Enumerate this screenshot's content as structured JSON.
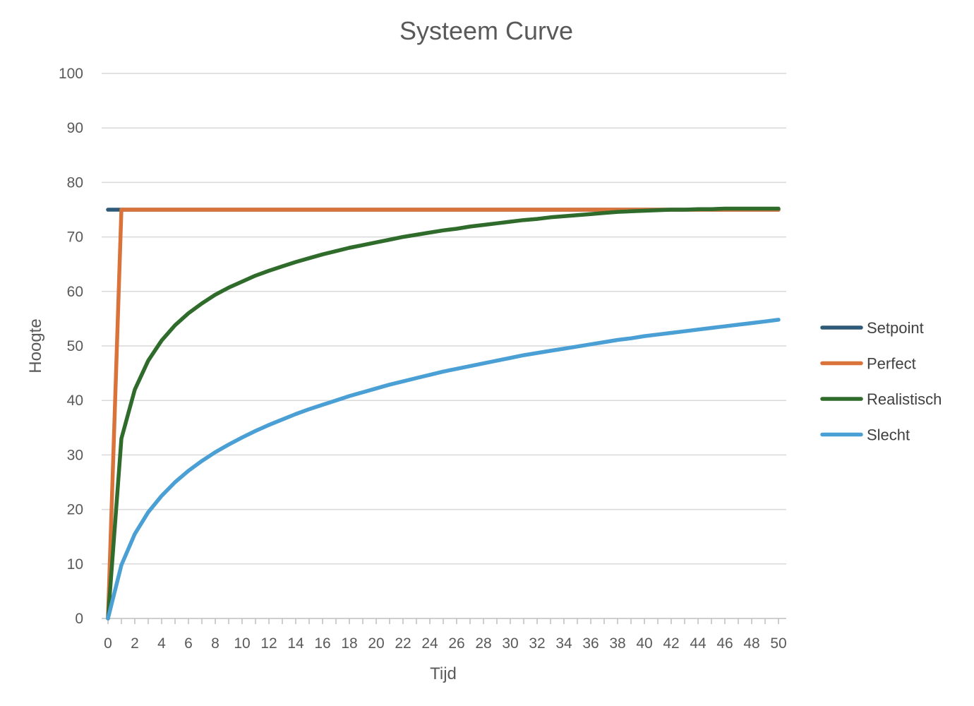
{
  "chart_data": {
    "type": "line",
    "title": "Systeem Curve",
    "xlabel": "Tijd",
    "ylabel": "Hoogte",
    "xlim": [
      0,
      50
    ],
    "ylim": [
      0,
      100
    ],
    "x_ticks": [
      0,
      2,
      4,
      6,
      8,
      10,
      12,
      14,
      16,
      18,
      20,
      22,
      24,
      26,
      28,
      30,
      32,
      34,
      36,
      38,
      40,
      42,
      44,
      46,
      48,
      50
    ],
    "y_ticks": [
      0,
      10,
      20,
      30,
      40,
      50,
      60,
      70,
      80,
      90,
      100
    ],
    "grid": "horizontal",
    "legend_position": "right",
    "series": [
      {
        "name": "Setpoint",
        "color": "#2E5A77",
        "x": [
          0,
          50
        ],
        "values": [
          75,
          75
        ]
      },
      {
        "name": "Perfect",
        "color": "#D9733A",
        "x": [
          0,
          1,
          50
        ],
        "values": [
          0,
          75,
          75
        ]
      },
      {
        "name": "Realistisch",
        "color": "#2F6B2A",
        "x": [
          0,
          1,
          2,
          3,
          4,
          5,
          6,
          7,
          8,
          9,
          10,
          11,
          12,
          13,
          14,
          15,
          16,
          17,
          18,
          19,
          20,
          21,
          22,
          23,
          24,
          25,
          26,
          27,
          28,
          29,
          30,
          31,
          32,
          33,
          34,
          35,
          36,
          37,
          38,
          39,
          40,
          41,
          42,
          43,
          44,
          45,
          46,
          47,
          48,
          49,
          50
        ],
        "values": [
          0,
          33,
          42,
          47.3,
          51,
          53.8,
          56,
          57.8,
          59.4,
          60.7,
          61.8,
          62.9,
          63.8,
          64.6,
          65.4,
          66.1,
          66.8,
          67.4,
          68,
          68.5,
          69,
          69.5,
          70,
          70.4,
          70.8,
          71.2,
          71.5,
          71.9,
          72.2,
          72.5,
          72.8,
          73.1,
          73.3,
          73.6,
          73.8,
          74,
          74.2,
          74.4,
          74.6,
          74.7,
          74.8,
          74.9,
          75,
          75,
          75.1,
          75.1,
          75.2,
          75.2,
          75.2,
          75.2,
          75.2
        ]
      },
      {
        "name": "Slecht",
        "color": "#4A9FD4",
        "x": [
          0,
          1,
          2,
          3,
          4,
          5,
          6,
          7,
          8,
          9,
          10,
          11,
          12,
          13,
          14,
          15,
          16,
          17,
          18,
          19,
          20,
          21,
          22,
          23,
          24,
          25,
          26,
          27,
          28,
          29,
          30,
          31,
          32,
          33,
          34,
          35,
          36,
          37,
          38,
          39,
          40,
          41,
          42,
          43,
          44,
          45,
          46,
          47,
          48,
          49,
          50
        ],
        "values": [
          0,
          9.8,
          15.5,
          19.5,
          22.5,
          25,
          27.1,
          28.9,
          30.5,
          31.9,
          33.2,
          34.4,
          35.5,
          36.5,
          37.5,
          38.4,
          39.2,
          40,
          40.8,
          41.5,
          42.2,
          42.9,
          43.5,
          44.1,
          44.7,
          45.3,
          45.8,
          46.3,
          46.8,
          47.3,
          47.8,
          48.3,
          48.7,
          49.1,
          49.5,
          49.9,
          50.3,
          50.7,
          51.1,
          51.4,
          51.8,
          52.1,
          52.4,
          52.7,
          53,
          53.3,
          53.6,
          53.9,
          54.2,
          54.5,
          54.8
        ]
      }
    ]
  }
}
